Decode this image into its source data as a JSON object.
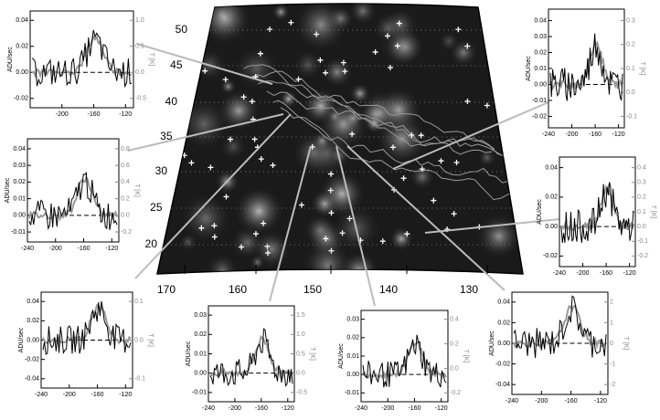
{
  "map": {
    "yticks": [
      50,
      45,
      40,
      35,
      30,
      25,
      20
    ],
    "xticks": [
      170,
      160,
      150,
      140,
      130
    ]
  },
  "panels": [
    {
      "y_label": "ADU/sec",
      "y2_label": "T [K]",
      "yticks": [
        0.04,
        0.02,
        {
          "value": 0,
          "label": "0.00"
        },
        -0.02
      ],
      "y2ticks": [
        {
          "value": 1,
          "label": "1.0"
        },
        0.5,
        {
          "value": 0,
          "label": "0.0"
        },
        -0.5
      ],
      "xticks": [
        -200,
        -160,
        -120
      ]
    },
    {
      "y_label": "ADU/sec",
      "y2_label": "T [K]",
      "yticks": [
        0.04,
        0.03,
        0.02,
        0.01,
        {
          "value": 0,
          "label": "0.00"
        },
        -0.01
      ],
      "y2ticks": [
        0.8,
        0.6,
        0.4,
        0.2,
        {
          "value": 0,
          "label": "0.0"
        },
        -0.2
      ],
      "xticks": [
        -240,
        -200,
        -160,
        -120
      ]
    },
    {
      "y_label": "ADU/sec",
      "y2_label": "T [K]",
      "yticks": [
        0.04,
        0.02,
        {
          "value": 0,
          "label": "0.00"
        },
        -0.02,
        -0.04
      ],
      "y2ticks": [
        0.1,
        {
          "value": 0,
          "label": "0.0"
        },
        -0.1
      ],
      "xticks": [
        -240,
        -200,
        -160,
        -120
      ]
    },
    {
      "y_label": "ADU/sec",
      "y2_label": "T [K]",
      "yticks": [
        0.03,
        0.02,
        0.01,
        {
          "value": 0,
          "label": "0.00"
        },
        -0.01
      ],
      "y2ticks": [
        1.5,
        {
          "value": 1,
          "label": "1.0"
        },
        0.5,
        {
          "value": 0,
          "label": "0.0"
        },
        -0.5
      ],
      "xticks": [
        -240,
        -200,
        -160,
        -120
      ]
    },
    {
      "y_label": "ADU/sec",
      "y2_label": "T [K]",
      "yticks": [
        0.03,
        0.02,
        0.01,
        {
          "value": 0,
          "label": "0.00"
        },
        -0.01
      ],
      "y2ticks": [
        0.4,
        0.2,
        {
          "value": 0,
          "label": "0.0"
        },
        -0.2
      ],
      "xticks": [
        -240,
        -200,
        -160,
        -120
      ]
    },
    {
      "y_label": "ADU/sec",
      "y2_label": "T [K]",
      "yticks": [
        0.04,
        0.02,
        {
          "value": 0,
          "label": "0.00"
        },
        -0.02,
        -0.04
      ],
      "y2ticks": [
        2,
        1,
        0,
        -1,
        -2
      ],
      "xticks": [
        -240,
        -200,
        -160,
        -120
      ]
    },
    {
      "y_label": "ADU/sec",
      "y2_label": "T [K]",
      "yticks": [
        0.04,
        0.03,
        0.02,
        0.01,
        {
          "value": 0,
          "label": "0.00"
        },
        -0.01,
        -0.02
      ],
      "y2ticks": [
        0.3,
        0.2,
        0.1,
        {
          "value": 0,
          "label": "0.0"
        },
        -0.1
      ],
      "xticks": [
        -240,
        -200,
        -160,
        -120
      ]
    },
    {
      "y_label": "ADU/sec",
      "y2_label": "T [K]",
      "yticks": [
        0.04,
        0.02,
        {
          "value": 0,
          "label": "0.00"
        },
        -0.02
      ],
      "y2ticks": [
        0.4,
        0.3,
        0.2,
        0.1,
        {
          "value": 0,
          "label": "0.0"
        },
        -0.1,
        -0.2
      ],
      "xticks": [
        -240,
        -200,
        -160,
        -120
      ]
    }
  ]
}
